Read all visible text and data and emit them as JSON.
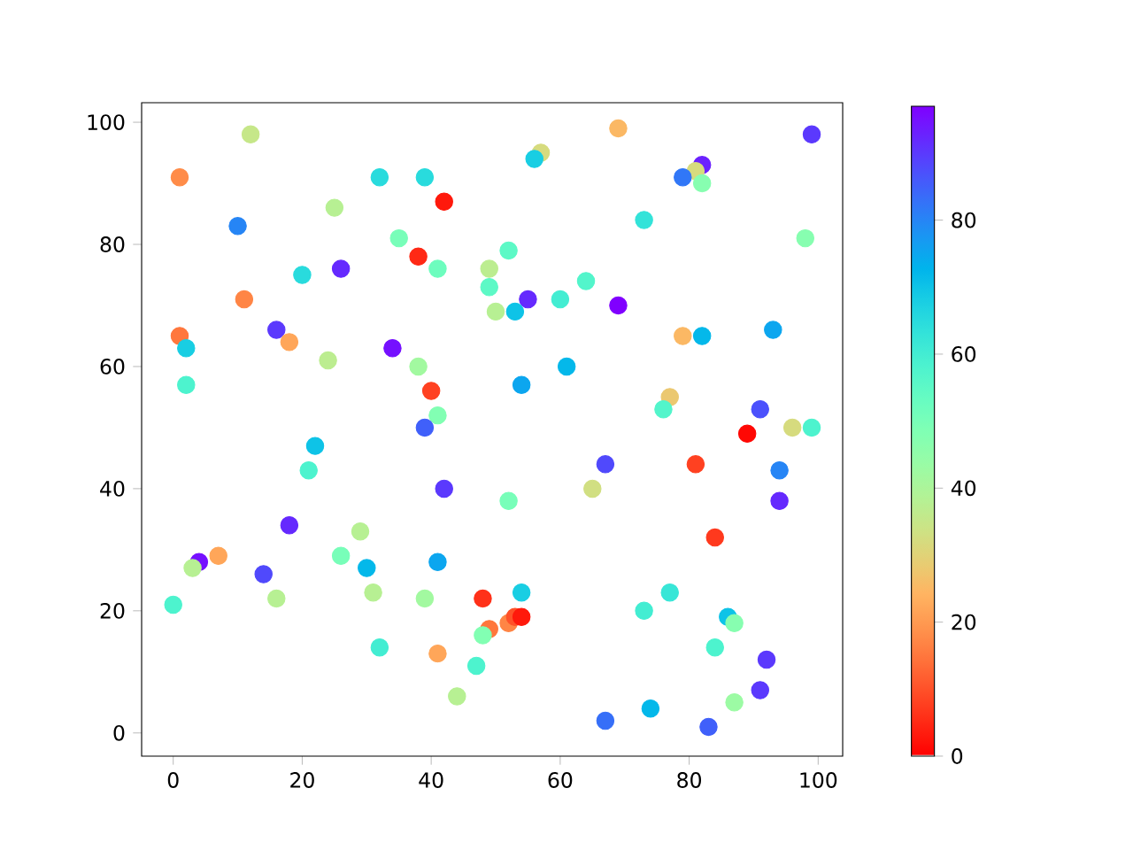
{
  "chart_data": {
    "type": "scatter",
    "marker": "circle",
    "x": [
      12,
      1,
      10,
      32,
      39,
      42,
      25,
      35,
      38,
      41,
      20,
      26,
      11,
      1,
      2,
      16,
      18,
      24,
      2,
      34,
      38,
      40,
      41,
      39,
      22,
      21,
      49,
      49,
      50,
      69,
      57,
      56,
      99,
      82,
      81,
      79,
      82,
      73,
      98,
      52,
      55,
      53,
      60,
      64,
      69,
      79,
      82,
      93,
      61,
      54,
      77,
      76,
      91,
      96,
      99,
      89,
      67,
      65,
      81,
      94,
      94,
      52,
      84,
      48,
      54,
      73,
      77,
      86,
      87,
      84,
      92,
      91,
      87,
      74,
      67,
      83,
      49,
      52,
      53,
      54,
      48,
      47,
      42,
      18,
      29,
      4,
      3,
      7,
      14,
      26,
      30,
      41,
      0,
      16,
      31,
      39,
      32,
      41,
      44
    ],
    "values": [
      98,
      91,
      83,
      91,
      91,
      87,
      86,
      81,
      78,
      76,
      75,
      76,
      71,
      65,
      63,
      66,
      64,
      61,
      57,
      63,
      60,
      56,
      52,
      50,
      47,
      43,
      76,
      73,
      69,
      99,
      95,
      94,
      98,
      93,
      92,
      91,
      90,
      84,
      81,
      79,
      71,
      69,
      71,
      74,
      70,
      65,
      65,
      66,
      60,
      57,
      55,
      53,
      53,
      50,
      50,
      49,
      44,
      40,
      44,
      43,
      38,
      38,
      32,
      22,
      23,
      20,
      23,
      19,
      18,
      14,
      12,
      7,
      5,
      4,
      2,
      1,
      17,
      18,
      19,
      19,
      16,
      11,
      40,
      34,
      33,
      28,
      27,
      29,
      26,
      29,
      27,
      28,
      21,
      22,
      23,
      22,
      14,
      13,
      6
    ],
    "cvalues": [
      35,
      18,
      80,
      65,
      65,
      3,
      38,
      50,
      5,
      52,
      65,
      92,
      17,
      15,
      68,
      90,
      22,
      37,
      58,
      95,
      42,
      8,
      48,
      85,
      70,
      58,
      37,
      55,
      38,
      25,
      32,
      68,
      90,
      93,
      32,
      82,
      47,
      63,
      47,
      55,
      92,
      70,
      60,
      57,
      97,
      25,
      72,
      75,
      72,
      75,
      28,
      57,
      87,
      32,
      58,
      1,
      88,
      33,
      8,
      80,
      92,
      50,
      7,
      6,
      68,
      60,
      62,
      70,
      47,
      58,
      90,
      90,
      43,
      72,
      83,
      85,
      15,
      17,
      10,
      3,
      48,
      58,
      90,
      92,
      38,
      95,
      38,
      22,
      88,
      50,
      72,
      75,
      58,
      38,
      38,
      42,
      60,
      22,
      38
    ],
    "xlim": [
      -4.9,
      103.8
    ],
    "ylim": [
      -3.8,
      103.2
    ],
    "xticks": [
      0,
      20,
      40,
      60,
      80,
      100
    ],
    "yticks": [
      0,
      20,
      40,
      60,
      80,
      100
    ],
    "clim": [
      0,
      97
    ],
    "cticks": [
      0,
      20,
      40,
      60,
      80
    ]
  }
}
